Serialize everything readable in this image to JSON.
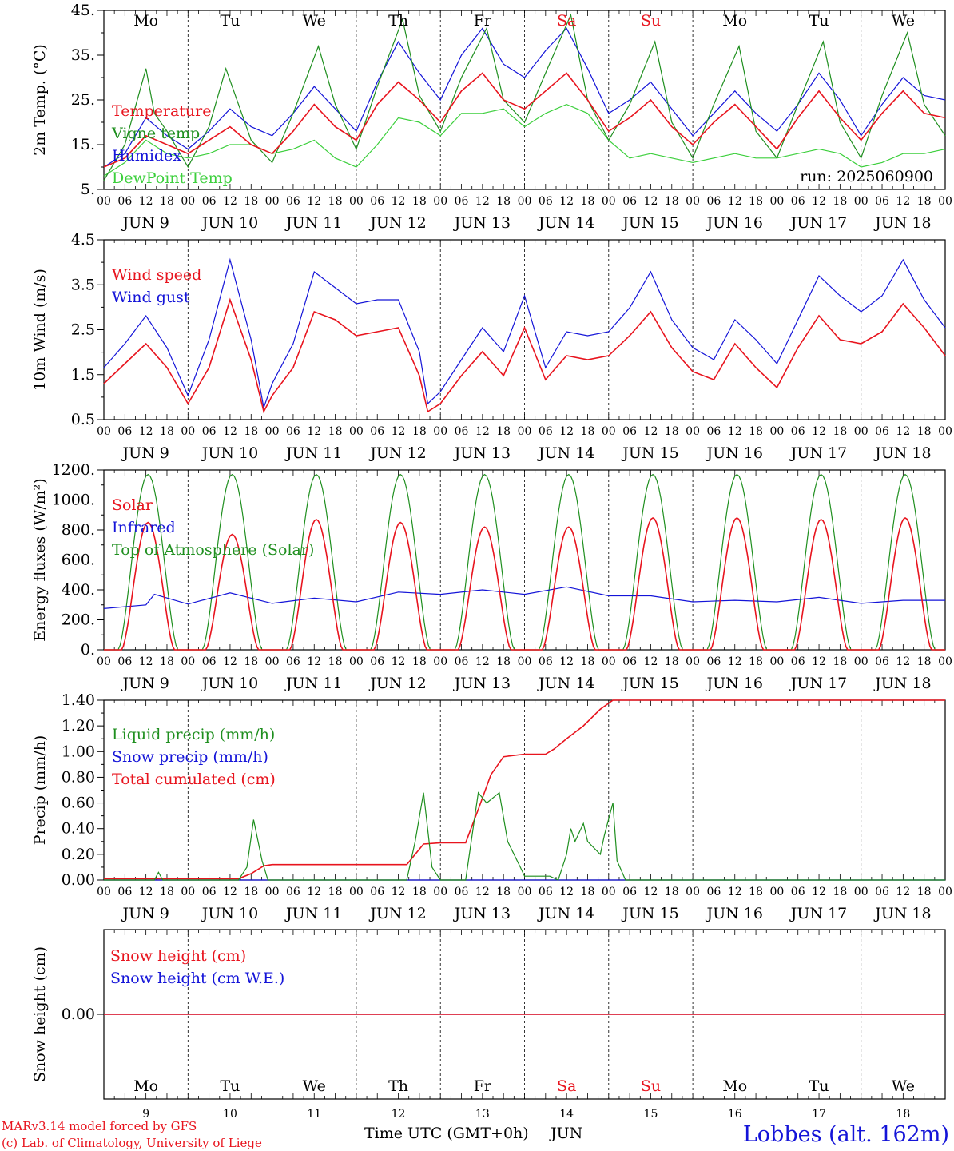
{
  "colors": {
    "red": "#e8141e",
    "green": "#1f8f1f",
    "lightgreen": "#3ccf3c",
    "blue": "#1414d8",
    "black": "#000000"
  },
  "days_top": [
    "Mo",
    "Tu",
    "We",
    "Th",
    "Fr",
    "Sa",
    "Su",
    "Mo",
    "Tu",
    "We"
  ],
  "weekend_days": [
    5,
    6
  ],
  "date_labels": [
    "JUN   9",
    "JUN 10",
    "JUN 11",
    "JUN 12",
    "JUN 13",
    "JUN 14",
    "JUN 15",
    "JUN 16",
    "JUN 17",
    "JUN 18"
  ],
  "hour_ticks": [
    "00",
    "06",
    "12",
    "18"
  ],
  "hour_end": "00",
  "bottom_day_numbers": [
    "9",
    "10",
    "11",
    "12",
    "13",
    "14",
    "15",
    "16",
    "17",
    "18"
  ],
  "xaxis_title": "Time UTC (GMT+0h)",
  "xaxis_month": "JUN",
  "credit_line1": "MARv3.14 model forced by GFS",
  "credit_line2": "(c) Lab. of Climatology, University of Liege",
  "station": "Lobbes (alt. 162m)",
  "run": "run: 2025060900",
  "chart_data": [
    {
      "type": "line",
      "ylabel": "2m Temp. (°C)",
      "ylim": [
        5,
        45
      ],
      "yticks": [
        "5.",
        "15.",
        "25.",
        "35.",
        "45."
      ],
      "x_unit": "days since 2025-06-09 00 UTC",
      "series": [
        {
          "name": "Temperature",
          "color": "red",
          "x": [
            0,
            0.25,
            0.5,
            0.75,
            1,
            1.25,
            1.5,
            1.75,
            2,
            2.25,
            2.5,
            2.75,
            3,
            3.25,
            3.5,
            3.75,
            4,
            4.25,
            4.5,
            4.75,
            5,
            5.25,
            5.5,
            5.75,
            6,
            6.25,
            6.5,
            6.75,
            7,
            7.25,
            7.5,
            7.75,
            8,
            8.25,
            8.5,
            8.75,
            9,
            9.25,
            9.5,
            9.75,
            10
          ],
          "y": [
            10,
            12,
            17,
            15,
            13,
            16,
            19,
            15,
            13,
            18,
            24,
            19,
            16,
            24,
            29,
            25,
            20,
            27,
            31,
            25,
            23,
            27,
            31,
            25,
            18,
            21,
            25,
            19,
            15,
            20,
            24,
            19,
            14,
            21,
            27,
            21,
            16,
            22,
            27,
            22,
            21
          ]
        },
        {
          "name": "Vigne temp",
          "color": "green",
          "x": [
            0,
            0.25,
            0.5,
            0.6,
            0.75,
            1,
            1.25,
            1.45,
            1.75,
            2,
            2.25,
            2.55,
            2.75,
            3,
            3.25,
            3.55,
            3.75,
            4,
            4.25,
            4.55,
            4.75,
            5,
            5.25,
            5.55,
            5.75,
            6,
            6.25,
            6.55,
            6.75,
            7,
            7.25,
            7.55,
            7.75,
            8,
            8.25,
            8.55,
            8.75,
            9,
            9.25,
            9.55,
            9.75,
            10
          ],
          "y": [
            7,
            15,
            32,
            22,
            18,
            10,
            19,
            32,
            16,
            11,
            22,
            37,
            24,
            14,
            28,
            43,
            26,
            18,
            30,
            41,
            25,
            20,
            31,
            44,
            25,
            16,
            24,
            38,
            20,
            12,
            24,
            37,
            18,
            12,
            24,
            38,
            20,
            12,
            26,
            40,
            24,
            17
          ]
        },
        {
          "name": "Humidex",
          "color": "blue",
          "x": [
            0,
            0.25,
            0.5,
            0.75,
            1,
            1.25,
            1.5,
            1.75,
            2,
            2.25,
            2.5,
            2.75,
            3,
            3.25,
            3.5,
            3.75,
            4,
            4.25,
            4.5,
            4.75,
            5,
            5.25,
            5.5,
            5.75,
            6,
            6.25,
            6.5,
            6.75,
            7,
            7.25,
            7.5,
            7.75,
            8,
            8.25,
            8.5,
            8.75,
            9,
            9.25,
            9.5,
            9.75,
            10
          ],
          "y": [
            10,
            13,
            21,
            17,
            14,
            18,
            23,
            19,
            17,
            22,
            28,
            23,
            18,
            29,
            38,
            31,
            25,
            35,
            41,
            33,
            30,
            36,
            41,
            32,
            22,
            25,
            29,
            23,
            17,
            22,
            27,
            22,
            18,
            24,
            31,
            25,
            17,
            24,
            30,
            26,
            25
          ]
        },
        {
          "name": "DewPoint Temp",
          "color": "lightgreen",
          "x": [
            0,
            0.25,
            0.5,
            0.75,
            1,
            1.25,
            1.5,
            1.75,
            2,
            2.25,
            2.5,
            2.75,
            3,
            3.25,
            3.5,
            3.75,
            4,
            4.25,
            4.5,
            4.75,
            5,
            5.25,
            5.5,
            5.75,
            6,
            6.25,
            6.5,
            6.75,
            7,
            7.25,
            7.5,
            7.75,
            8,
            8.25,
            8.5,
            8.75,
            9,
            9.25,
            9.5,
            9.75,
            10
          ],
          "y": [
            8,
            11,
            16,
            13,
            12,
            13,
            15,
            15,
            13,
            14,
            16,
            12,
            10,
            15,
            21,
            20,
            17,
            22,
            22,
            23,
            19,
            22,
            24,
            22,
            16,
            12,
            13,
            12,
            11,
            12,
            13,
            12,
            12,
            13,
            14,
            13,
            10,
            11,
            13,
            13,
            14
          ]
        }
      ]
    },
    {
      "type": "line",
      "ylabel": "10m Wind (m/s)",
      "ylim": [
        0.5,
        5
      ],
      "yticks": [
        "0.5",
        "1.5",
        "2.5",
        "3.5",
        "4.5"
      ],
      "x_unit": "days since 2025-06-09 00 UTC",
      "series": [
        {
          "name": "Wind speed",
          "color": "red",
          "x": [
            0,
            0.25,
            0.5,
            0.75,
            1,
            1.25,
            1.5,
            1.75,
            1.9,
            2,
            2.25,
            2.5,
            2.75,
            3,
            3.25,
            3.5,
            3.75,
            3.85,
            4,
            4.25,
            4.5,
            4.75,
            5,
            5.25,
            5.5,
            5.75,
            6,
            6.25,
            6.5,
            6.75,
            7,
            7.25,
            7.5,
            7.75,
            8,
            8.25,
            8.5,
            8.75,
            9,
            9.25,
            9.5,
            9.75,
            10
          ],
          "y": [
            1.4,
            1.9,
            2.4,
            1.8,
            0.9,
            1.8,
            3.5,
            2.0,
            0.7,
            1.1,
            1.8,
            3.2,
            3.0,
            2.6,
            2.7,
            2.8,
            1.6,
            0.7,
            0.9,
            1.6,
            2.2,
            1.6,
            2.8,
            1.5,
            2.1,
            2.0,
            2.1,
            2.6,
            3.2,
            2.3,
            1.7,
            1.5,
            2.4,
            1.8,
            1.3,
            2.3,
            3.1,
            2.5,
            2.4,
            2.7,
            3.4,
            2.8,
            2.1
          ]
        },
        {
          "name": "Wind gust",
          "color": "blue",
          "x": [
            0,
            0.25,
            0.5,
            0.75,
            1,
            1.25,
            1.5,
            1.75,
            1.9,
            2,
            2.25,
            2.5,
            2.75,
            3,
            3.25,
            3.5,
            3.75,
            3.85,
            4,
            4.25,
            4.5,
            4.75,
            5,
            5.25,
            5.5,
            5.75,
            6,
            6.25,
            6.5,
            6.75,
            7,
            7.25,
            7.5,
            7.75,
            8,
            8.25,
            8.5,
            8.75,
            9,
            9.25,
            9.5,
            9.75,
            10
          ],
          "y": [
            1.8,
            2.4,
            3.1,
            2.3,
            1.1,
            2.5,
            4.5,
            2.5,
            0.8,
            1.4,
            2.4,
            4.2,
            3.8,
            3.4,
            3.5,
            3.5,
            2.2,
            0.9,
            1.2,
            2.0,
            2.8,
            2.2,
            3.6,
            1.8,
            2.7,
            2.6,
            2.7,
            3.3,
            4.2,
            3.0,
            2.3,
            2.0,
            3.0,
            2.5,
            1.9,
            3.0,
            4.1,
            3.6,
            3.2,
            3.6,
            4.5,
            3.5,
            2.8
          ]
        }
      ]
    },
    {
      "type": "line",
      "ylabel": "Energy fluxes (W/m²)",
      "ylim": [
        0,
        1200
      ],
      "yticks": [
        "0.",
        "200.",
        "400.",
        "600.",
        "800.",
        "1000.",
        "1200."
      ],
      "x_unit": "days since 2025-06-09 00 UTC",
      "diurnal": {
        "day_start_fraction": 0.17,
        "day_end_fraction": 0.88,
        "solar_peaks": [
          850,
          770,
          870,
          850,
          820,
          820,
          880,
          880,
          870,
          880
        ],
        "toa_peak": 1170
      },
      "series": [
        {
          "name": "Solar",
          "color": "red",
          "kind": "diurnal-solar"
        },
        {
          "name": "Infrared",
          "color": "blue",
          "x": [
            0,
            0.5,
            0.6,
            1,
            1.5,
            2,
            2.5,
            3,
            3.5,
            4,
            4.5,
            5,
            5.5,
            6,
            6.5,
            7,
            7.5,
            8,
            8.5,
            9,
            9.5,
            10
          ],
          "y": [
            275,
            300,
            370,
            305,
            380,
            310,
            345,
            320,
            385,
            370,
            400,
            370,
            420,
            360,
            360,
            320,
            330,
            320,
            350,
            310,
            330,
            330
          ]
        },
        {
          "name": "Top of Atmosphere (Solar)",
          "color": "green",
          "kind": "diurnal-toa"
        }
      ]
    },
    {
      "type": "line",
      "ylabel": "Precip (mm/h)",
      "ylim": [
        0,
        1.4
      ],
      "yticks": [
        "0.00",
        "0.20",
        "0.40",
        "0.60",
        "0.80",
        "1.00",
        "1.20",
        "1.40"
      ],
      "x_unit": "days since 2025-06-09 00 UTC",
      "series": [
        {
          "name": "Liquid precip (mm/h)",
          "color": "green",
          "x": [
            0,
            0.6,
            0.65,
            0.7,
            1.6,
            1.7,
            1.78,
            1.88,
            1.95,
            3.6,
            3.7,
            3.8,
            3.9,
            4.0,
            4.3,
            4.45,
            4.55,
            4.7,
            4.8,
            4.95,
            5.0,
            5.3,
            5.4,
            5.5,
            5.55,
            5.6,
            5.7,
            5.75,
            5.9,
            5.95,
            6.05,
            6.1,
            6.2,
            10
          ],
          "y": [
            0,
            0,
            0.06,
            0,
            0,
            0.1,
            0.47,
            0.15,
            0,
            0,
            0.3,
            0.68,
            0.1,
            0,
            0,
            0.68,
            0.6,
            0.68,
            0.3,
            0.1,
            0.03,
            0.03,
            0,
            0.2,
            0.4,
            0.3,
            0.44,
            0.3,
            0.2,
            0.35,
            0.6,
            0.15,
            0,
            0
          ]
        },
        {
          "name": "Snow precip (mm/h)",
          "color": "blue",
          "x": [
            0,
            10
          ],
          "y": [
            0,
            0
          ]
        },
        {
          "name": "Total cumulated (cm)",
          "color": "red",
          "x": [
            0,
            1.6,
            1.75,
            1.9,
            2.0,
            3.6,
            3.7,
            3.8,
            4.0,
            4.3,
            4.45,
            4.6,
            4.75,
            5.0,
            5.25,
            5.35,
            5.5,
            5.7,
            5.9,
            6.05,
            10
          ],
          "y": [
            0.01,
            0.01,
            0.05,
            0.11,
            0.12,
            0.12,
            0.2,
            0.28,
            0.29,
            0.29,
            0.55,
            0.82,
            0.96,
            0.98,
            0.98,
            1.02,
            1.1,
            1.2,
            1.33,
            1.4,
            1.4
          ]
        }
      ]
    },
    {
      "type": "line",
      "ylabel": "Snow height (cm)",
      "ytick_label": "0.00",
      "x_unit": "days since 2025-06-09 00 UTC",
      "series": [
        {
          "name": "Snow height (cm)",
          "color": "red",
          "x": [
            0,
            10
          ],
          "y": [
            0,
            0
          ]
        },
        {
          "name": "Snow height (cm W.E.)",
          "color": "blue",
          "x": [
            0,
            10
          ],
          "y": [
            0,
            0
          ]
        }
      ]
    }
  ]
}
